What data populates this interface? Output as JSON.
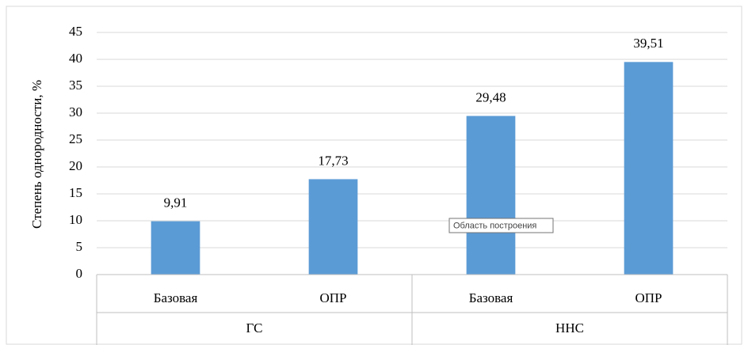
{
  "chart_data": {
    "type": "bar",
    "y_label": "Степень однородности, %",
    "categories": [
      "Базовая",
      "ОПР",
      "Базовая",
      "ОПР"
    ],
    "groups": [
      "ГС",
      "ННС"
    ],
    "values": [
      9.91,
      17.73,
      29.48,
      39.51
    ],
    "value_labels": [
      "9,91",
      "17,73",
      "29,48",
      "39,51"
    ],
    "color": "#5b9bd5",
    "ylim": [
      0,
      45
    ],
    "yticks": [
      0,
      5,
      10,
      15,
      20,
      25,
      30,
      35,
      40,
      45
    ],
    "grid": true,
    "annotation": "Область построения"
  }
}
